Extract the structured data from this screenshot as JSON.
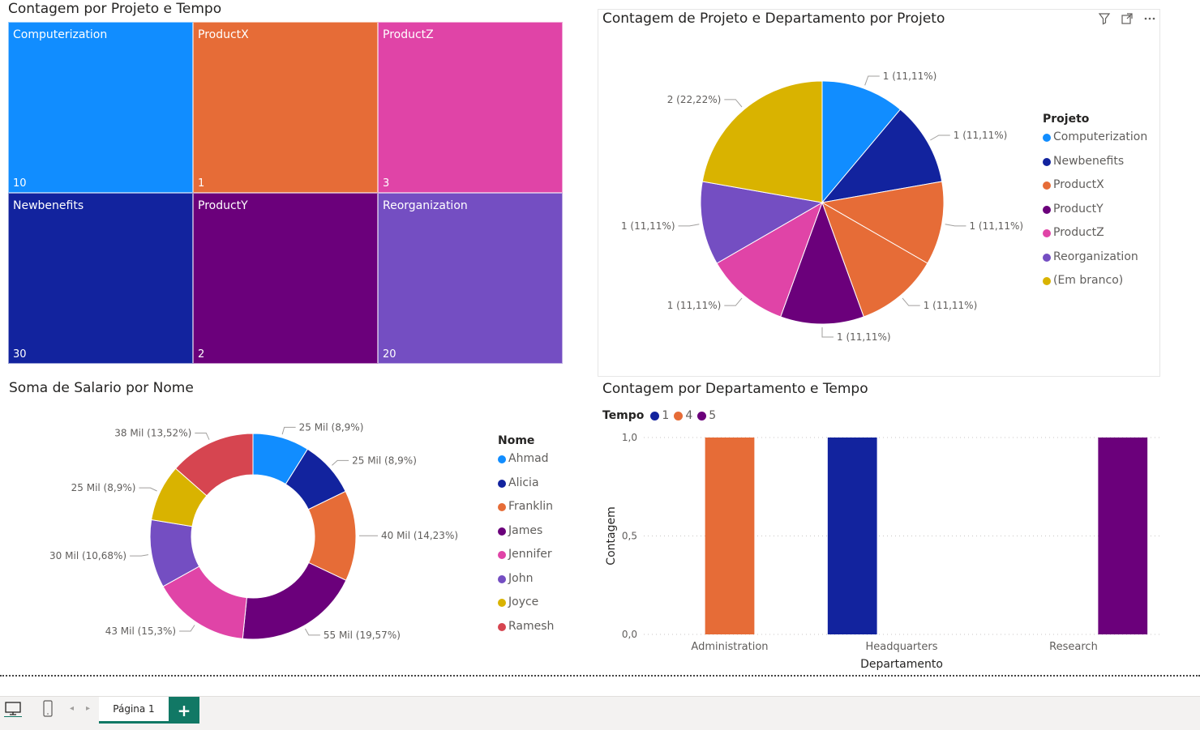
{
  "colors": {
    "computerization": "#118DFF",
    "newbenefits": "#12239E",
    "productx": "#E66C37",
    "producty": "#6B007B",
    "productz": "#E044A7",
    "reorganization": "#744EC2",
    "blank": "#D9B300",
    "ramesh": "#D64550"
  },
  "treemap": {
    "title": "Contagem por Projeto e Tempo",
    "chart_data": {
      "type": "treemap",
      "title": "Contagem por Projeto e Tempo",
      "items": [
        {
          "label": "Computerization",
          "value": 10,
          "color": "#118DFF"
        },
        {
          "label": "ProductX",
          "value": 1,
          "color": "#E66C37"
        },
        {
          "label": "ProductZ",
          "value": 3,
          "color": "#E044A7"
        },
        {
          "label": "Newbenefits",
          "value": 30,
          "color": "#12239E"
        },
        {
          "label": "ProductY",
          "value": 2,
          "color": "#6B007B"
        },
        {
          "label": "Reorganization",
          "value": 20,
          "color": "#744EC2"
        }
      ]
    }
  },
  "pie": {
    "title": "Contagem de Projeto e Departamento por Projeto",
    "icons": [
      "filter-icon",
      "focus-mode-icon",
      "more-options-icon"
    ],
    "legend_title": "Projeto",
    "chart_data": {
      "type": "pie",
      "title": "Contagem de Projeto e Departamento por Projeto",
      "legend_title": "Projeto",
      "legend_position": "right",
      "slices": [
        {
          "label": "Computerization",
          "value": 1,
          "display": "1 (11,11%)",
          "color": "#118DFF"
        },
        {
          "label": "Newbenefits",
          "value": 1,
          "display": "1 (11,11%)",
          "color": "#12239E"
        },
        {
          "label": "ProductX",
          "value": 1,
          "display": "1 (11,11%)",
          "color": "#E66C37"
        },
        {
          "label": "ProductX",
          "value": 1,
          "display": "1 (11,11%)",
          "color": "#E66C37"
        },
        {
          "label": "ProductY",
          "value": 1,
          "display": "1 (11,11%)",
          "color": "#6B007B"
        },
        {
          "label": "ProductZ",
          "value": 1,
          "display": "1 (11,11%)",
          "color": "#E044A7"
        },
        {
          "label": "Reorganization",
          "value": 1,
          "display": "1 (11,11%)",
          "color": "#744EC2"
        },
        {
          "label": "(Em branco)",
          "value": 2,
          "display": "2 (22,22%)",
          "color": "#D9B300"
        }
      ],
      "legend": [
        {
          "label": "Computerization",
          "color": "#118DFF"
        },
        {
          "label": "Newbenefits",
          "color": "#12239E"
        },
        {
          "label": "ProductX",
          "color": "#E66C37"
        },
        {
          "label": "ProductY",
          "color": "#6B007B"
        },
        {
          "label": "ProductZ",
          "color": "#E044A7"
        },
        {
          "label": "Reorganization",
          "color": "#744EC2"
        },
        {
          "label": "(Em branco)",
          "color": "#D9B300"
        }
      ]
    }
  },
  "donut": {
    "title": "Soma de Salario por Nome",
    "legend_title": "Nome",
    "chart_data": {
      "type": "pie",
      "subtype": "donut",
      "title": "Soma de Salario por Nome",
      "legend_title": "Nome",
      "legend_position": "right",
      "slices": [
        {
          "label": "Ahmad",
          "value": 25000,
          "display": "25 Mil (8,9%)",
          "color": "#118DFF"
        },
        {
          "label": "Alicia",
          "value": 25000,
          "display": "25 Mil (8,9%)",
          "color": "#12239E"
        },
        {
          "label": "Franklin",
          "value": 40000,
          "display": "40 Mil (14,23%)",
          "color": "#E66C37"
        },
        {
          "label": "James",
          "value": 55000,
          "display": "55 Mil (19,57%)",
          "color": "#6B007B"
        },
        {
          "label": "Jennifer",
          "value": 43000,
          "display": "43 Mil (15,3%)",
          "color": "#E044A7"
        },
        {
          "label": "John",
          "value": 30000,
          "display": "30 Mil (10,68%)",
          "color": "#744EC2"
        },
        {
          "label": "Joyce",
          "value": 25000,
          "display": "25 Mil (8,9%)",
          "color": "#D9B300"
        },
        {
          "label": "Ramesh",
          "value": 38000,
          "display": "38 Mil (13,52%)",
          "color": "#D64550"
        }
      ]
    }
  },
  "bar": {
    "title": "Contagem por Departamento e Tempo",
    "legend_title": "Tempo",
    "chart_data": {
      "type": "bar",
      "title": "Contagem por Departamento e Tempo",
      "xlabel": "Departamento",
      "ylabel": "Contagem",
      "ylim": [
        0,
        1
      ],
      "yticks": [
        "0,0",
        "0,5",
        "1,0"
      ],
      "legend_title": "Tempo",
      "legend_position": "top-left",
      "categories": [
        "Administration",
        "Headquarters",
        "Research"
      ],
      "series": [
        {
          "name": "1",
          "color": "#12239E",
          "values": [
            null,
            1,
            null
          ]
        },
        {
          "name": "4",
          "color": "#E66C37",
          "values": [
            1,
            null,
            null
          ]
        },
        {
          "name": "5",
          "color": "#6B007B",
          "values": [
            null,
            null,
            1
          ]
        }
      ]
    }
  },
  "footer": {
    "page_tab": "Página 1",
    "add_label": "+"
  }
}
